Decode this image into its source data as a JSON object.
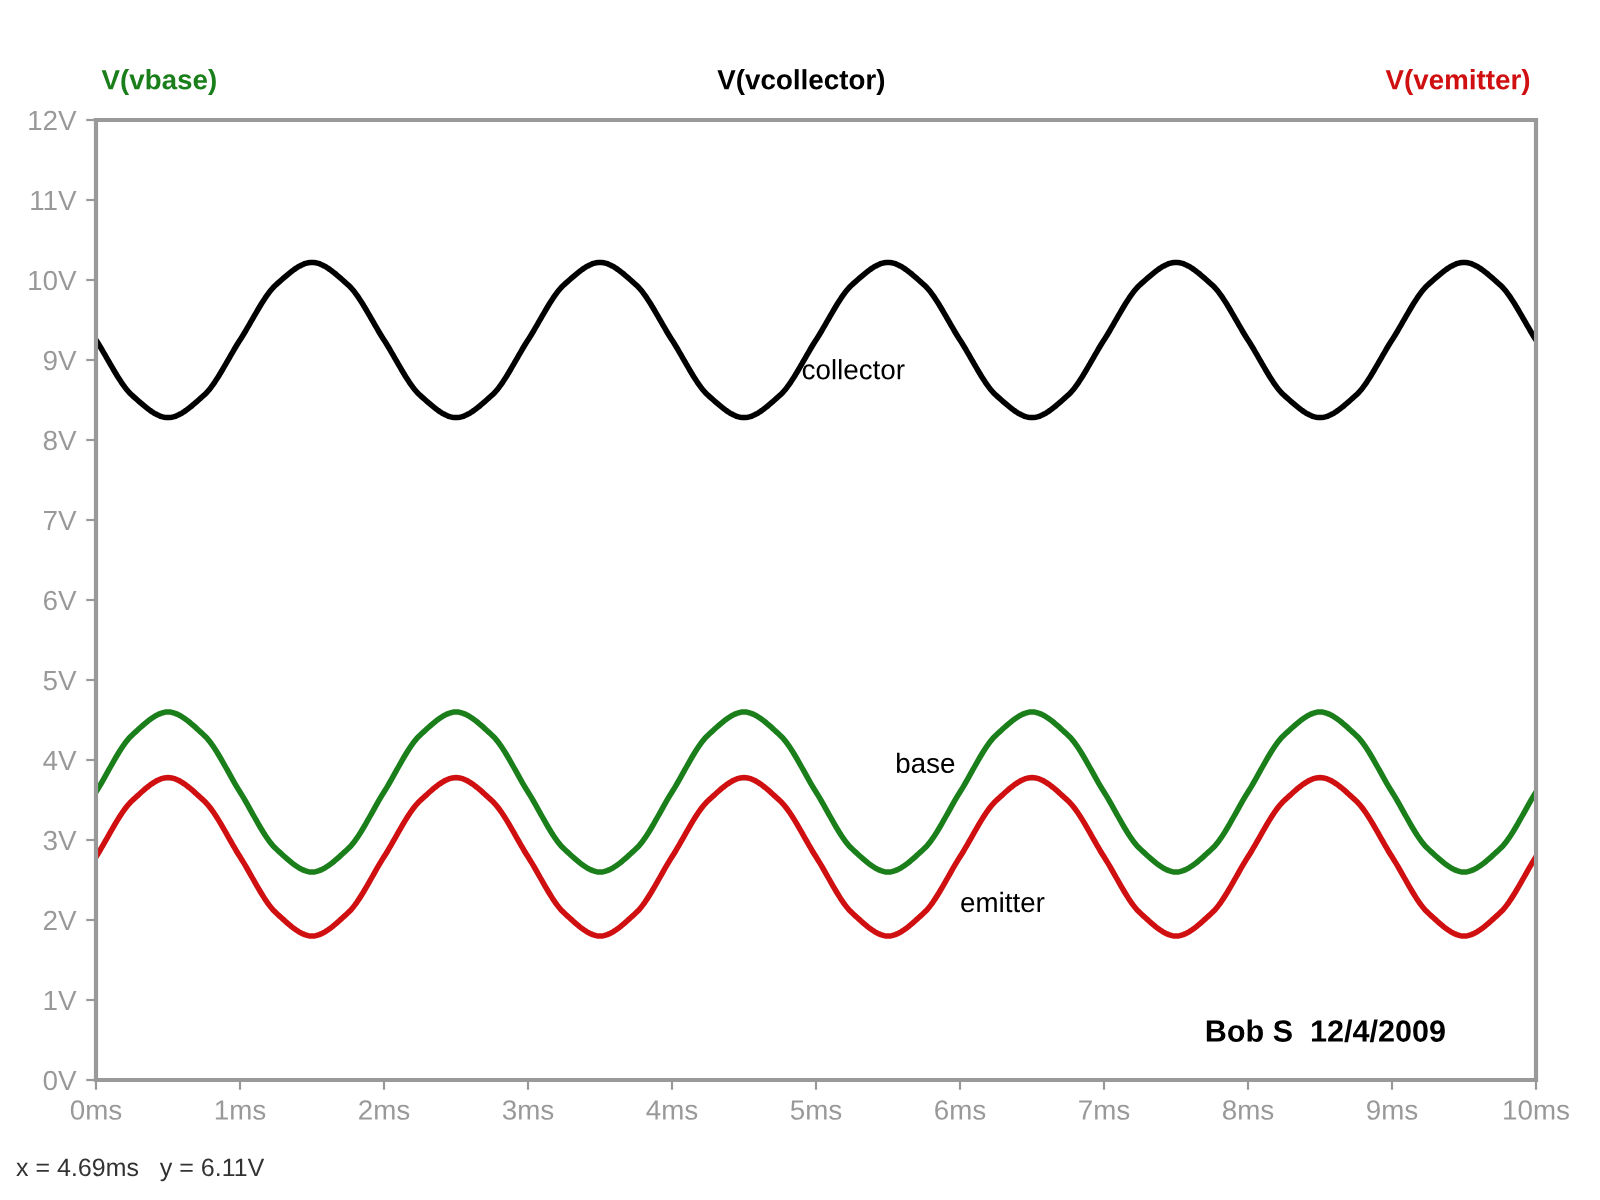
{
  "chart_data": {
    "type": "line",
    "x": [
      0,
      0.25,
      0.5,
      0.75,
      1,
      1.25,
      1.5,
      1.75,
      2,
      2.25,
      2.5,
      2.75,
      3,
      3.25,
      3.5,
      3.75,
      4,
      4.25,
      4.5,
      4.75,
      5,
      5.25,
      5.5,
      5.75,
      6,
      6.25,
      6.5,
      6.75,
      7,
      7.25,
      7.5,
      7.75,
      8,
      8.25,
      8.5,
      8.75,
      9,
      9.25,
      9.5,
      9.75,
      10
    ],
    "series": [
      {
        "name": "V(vbase)",
        "color": "#1a7f1a",
        "values": [
          3.6,
          4.31,
          4.6,
          4.31,
          3.6,
          2.89,
          2.6,
          2.89,
          3.6,
          4.31,
          4.6,
          4.31,
          3.6,
          2.89,
          2.6,
          2.89,
          3.6,
          4.31,
          4.6,
          4.31,
          3.6,
          2.89,
          2.6,
          2.89,
          3.6,
          4.31,
          4.6,
          4.31,
          3.6,
          2.89,
          2.6,
          2.89,
          3.6,
          4.31,
          4.6,
          4.31,
          3.6,
          2.89,
          2.6,
          2.89,
          3.6
        ]
      },
      {
        "name": "V(vcollector)",
        "color": "#000000",
        "values": [
          9.25,
          8.56,
          8.28,
          8.56,
          9.25,
          9.94,
          10.22,
          9.94,
          9.25,
          8.56,
          8.28,
          8.56,
          9.25,
          9.94,
          10.22,
          9.94,
          9.25,
          8.56,
          8.28,
          8.56,
          9.25,
          9.94,
          10.22,
          9.94,
          9.25,
          8.56,
          8.28,
          8.56,
          9.25,
          9.94,
          10.22,
          9.94,
          9.25,
          8.56,
          8.28,
          8.56,
          9.25,
          9.94,
          10.22,
          9.94,
          9.25
        ]
      },
      {
        "name": "V(vemitter)",
        "color": "#d01010",
        "values": [
          2.79,
          3.49,
          3.78,
          3.49,
          2.79,
          2.09,
          1.8,
          2.09,
          2.79,
          3.49,
          3.78,
          3.49,
          2.79,
          2.09,
          1.8,
          2.09,
          2.79,
          3.49,
          3.78,
          3.49,
          2.79,
          2.09,
          1.8,
          2.09,
          2.79,
          3.49,
          3.78,
          3.49,
          2.79,
          2.09,
          1.8,
          2.09,
          2.79,
          3.49,
          3.78,
          3.49,
          2.79,
          2.09,
          1.8,
          2.09,
          2.79
        ]
      }
    ],
    "xlim": [
      0,
      10
    ],
    "xticks": [
      {
        "value": 0,
        "label": "0ms"
      },
      {
        "value": 1,
        "label": "1ms"
      },
      {
        "value": 2,
        "label": "2ms"
      },
      {
        "value": 3,
        "label": "3ms"
      },
      {
        "value": 4,
        "label": "4ms"
      },
      {
        "value": 5,
        "label": "5ms"
      },
      {
        "value": 6,
        "label": "6ms"
      },
      {
        "value": 7,
        "label": "7ms"
      },
      {
        "value": 8,
        "label": "8ms"
      },
      {
        "value": 9,
        "label": "9ms"
      },
      {
        "value": 10,
        "label": "10ms"
      }
    ],
    "ylim": [
      0,
      12
    ],
    "yticks": [
      {
        "value": 0,
        "label": "0V"
      },
      {
        "value": 1,
        "label": "1V"
      },
      {
        "value": 2,
        "label": "2V"
      },
      {
        "value": 3,
        "label": "3V"
      },
      {
        "value": 4,
        "label": "4V"
      },
      {
        "value": 5,
        "label": "5V"
      },
      {
        "value": 6,
        "label": "6V"
      },
      {
        "value": 7,
        "label": "7V"
      },
      {
        "value": 8,
        "label": "8V"
      },
      {
        "value": 9,
        "label": "9V"
      },
      {
        "value": 10,
        "label": "10V"
      },
      {
        "value": 11,
        "label": "11V"
      },
      {
        "value": 12,
        "label": "12V"
      }
    ],
    "annotations": [
      "collector",
      "base",
      "emitter",
      "Bob S  12/4/2009",
      "x = 4.69ms   y = 6.11V"
    ],
    "legend": "top",
    "grid": false,
    "marker": "none",
    "line_style": "solid"
  }
}
